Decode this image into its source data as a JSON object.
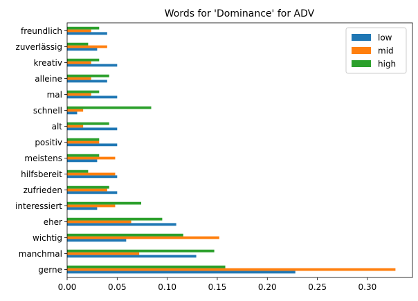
{
  "chart_data": {
    "type": "bar",
    "orientation": "horizontal",
    "title": "Words for 'Dominance' for ADV",
    "xlabel": "",
    "ylabel": "",
    "xlim": [
      0,
      0.345
    ],
    "xticks": [
      0.0,
      0.05,
      0.1,
      0.15,
      0.2,
      0.25,
      0.3
    ],
    "xtick_labels": [
      "0.00",
      "0.05",
      "0.10",
      "0.15",
      "0.20",
      "0.25",
      "0.30"
    ],
    "grid": false,
    "legend_position": "top-right",
    "categories": [
      "gerne",
      "manchmal",
      "wichtig",
      "eher",
      "interessiert",
      "zufrieden",
      "hilfsbereit",
      "meistens",
      "positiv",
      "alt",
      "schnell",
      "mal",
      "alleine",
      "kreativ",
      "zuverlässig",
      "freundlich"
    ],
    "series": [
      {
        "name": "low",
        "color": "#1f77b4",
        "values": [
          0.228,
          0.129,
          0.059,
          0.109,
          0.03,
          0.05,
          0.05,
          0.03,
          0.05,
          0.05,
          0.01,
          0.05,
          0.04,
          0.05,
          0.03,
          0.04
        ]
      },
      {
        "name": "mid",
        "color": "#ff7f0e",
        "values": [
          0.328,
          0.072,
          0.152,
          0.064,
          0.048,
          0.04,
          0.048,
          0.048,
          0.032,
          0.016,
          0.016,
          0.024,
          0.024,
          0.024,
          0.04,
          0.024
        ]
      },
      {
        "name": "high",
        "color": "#2ca02c",
        "values": [
          0.158,
          0.147,
          0.116,
          0.095,
          0.074,
          0.042,
          0.021,
          0.032,
          0.032,
          0.042,
          0.084,
          0.032,
          0.042,
          0.032,
          0.021,
          0.032
        ]
      }
    ]
  }
}
